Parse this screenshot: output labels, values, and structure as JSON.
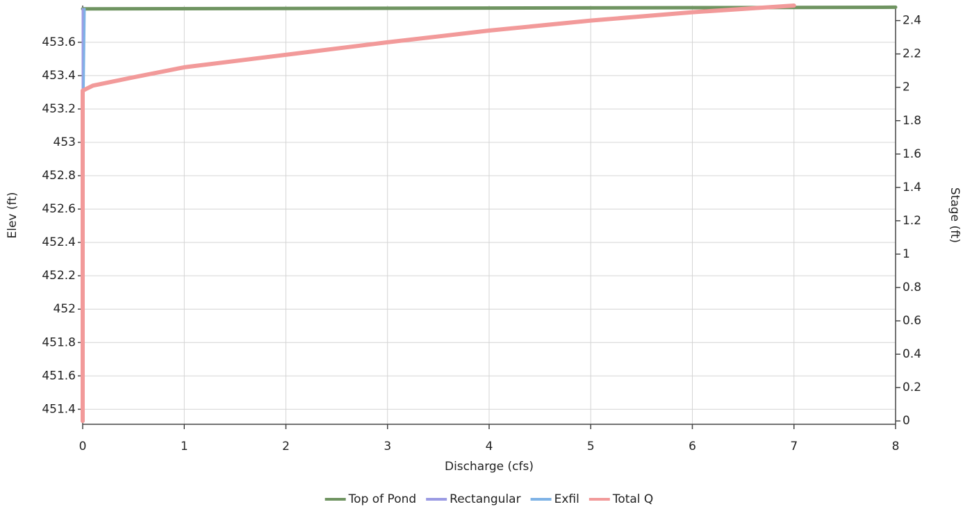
{
  "chart_data": {
    "type": "line",
    "x_label": "Discharge (cfs)",
    "y_label": "Elev (ft)",
    "y2_label": "Stage (ft)",
    "xlim": [
      0,
      8
    ],
    "xticks": [
      0,
      1,
      2,
      3,
      4,
      5,
      6,
      7,
      8
    ],
    "ylim": [
      451.31,
      453.82
    ],
    "yticks": [
      451.4,
      451.6,
      451.8,
      452,
      452.2,
      452.4,
      452.6,
      452.8,
      453,
      453.2,
      453.4,
      453.6
    ],
    "y2lim": [
      -0.02,
      2.49
    ],
    "y2ticks": [
      0,
      0.2,
      0.4,
      0.6,
      0.8,
      1,
      1.2,
      1.4,
      1.6,
      1.8,
      2,
      2.2,
      2.4
    ],
    "grid": true,
    "legend": "bottom",
    "series": [
      {
        "name": "Top of Pond",
        "color": "#6f9461",
        "width": 5,
        "x": [
          0,
          8
        ],
        "values": [
          453.8,
          453.81
        ]
      },
      {
        "name": "Rectangular",
        "color": "#9b9be3",
        "width": 3,
        "x": [
          0,
          0
        ],
        "values": [
          451.33,
          453.8
        ]
      },
      {
        "name": "Exfil",
        "color": "#7fb3e6",
        "width": 3,
        "x": [
          0.01,
          0.01,
          0.02
        ],
        "values": [
          451.33,
          453.31,
          453.8
        ]
      },
      {
        "name": "Total Q",
        "color": "#f29a9a",
        "width": 6,
        "x": [
          0,
          0,
          0.1,
          0.5,
          1,
          2,
          3,
          4,
          5,
          6,
          7
        ],
        "values": [
          451.33,
          453.31,
          453.34,
          453.39,
          453.45,
          453.525,
          453.6,
          453.67,
          453.73,
          453.78,
          453.82
        ]
      }
    ]
  }
}
